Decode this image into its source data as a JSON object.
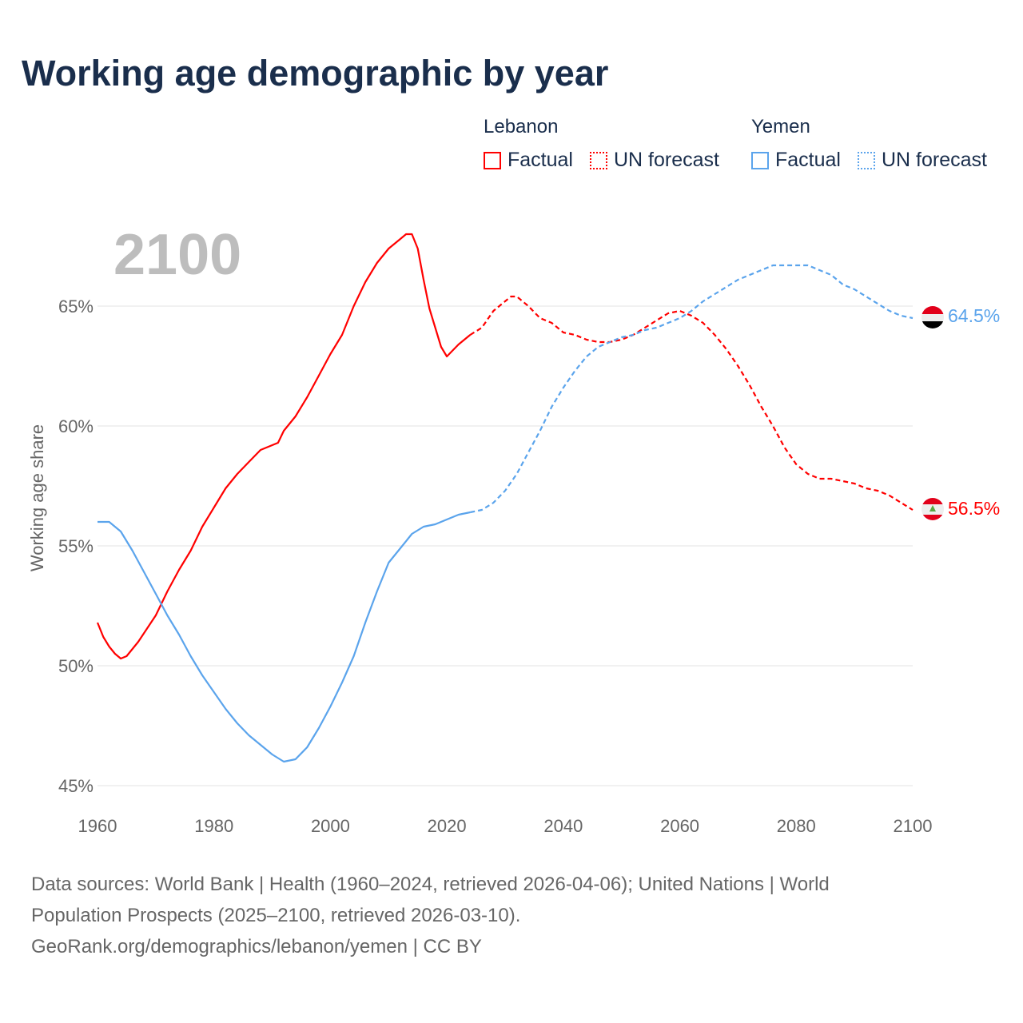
{
  "title": "Working age demographic by year",
  "legend": {
    "groups": [
      {
        "name": "Lebanon",
        "factual_label": "Factual",
        "forecast_label": "UN forecast",
        "color": "#ff0000"
      },
      {
        "name": "Yemen",
        "factual_label": "Factual",
        "forecast_label": "UN forecast",
        "color": "#5ba4ec"
      }
    ]
  },
  "year_watermark": "2100",
  "end_labels": {
    "yemen": "64.5%",
    "lebanon": "56.5%"
  },
  "footer": {
    "line1": "Data sources: World Bank | Health (1960–2024, retrieved 2026-04-06); United Nations | World",
    "line2": "Population Prospects (2025–2100, retrieved 2026-03-10).",
    "line3": "GeoRank.org/demographics/lebanon/yemen | CC BY"
  },
  "chart_data": {
    "type": "line",
    "title": "Working age demographic by year",
    "xlabel": "",
    "ylabel": "Working age share",
    "xlim": [
      1960,
      2100
    ],
    "ylim": [
      45,
      68.5
    ],
    "xticks": [
      "1960",
      "1980",
      "2000",
      "2020",
      "2040",
      "2060",
      "2080",
      "2100"
    ],
    "yticks": [
      "45%",
      "50%",
      "55%",
      "60%",
      "65%"
    ],
    "ytick_values": [
      45,
      50,
      55,
      60,
      65
    ],
    "grid": true,
    "forecast_start": 2024,
    "series": [
      {
        "name": "Lebanon",
        "color": "#ff0000",
        "x": [
          1960,
          1961,
          1962,
          1963,
          1964,
          1965,
          1967,
          1970,
          1972,
          1974,
          1976,
          1978,
          1980,
          1982,
          1984,
          1986,
          1988,
          1990,
          1991,
          1992,
          1994,
          1996,
          1998,
          2000,
          2002,
          2004,
          2006,
          2008,
          2010,
          2012,
          2013,
          2014,
          2015,
          2016,
          2017,
          2018,
          2019,
          2020,
          2022,
          2024,
          2026,
          2028,
          2030,
          2031,
          2032,
          2034,
          2036,
          2038,
          2040,
          2042,
          2044,
          2046,
          2048,
          2050,
          2052,
          2054,
          2056,
          2058,
          2060,
          2062,
          2064,
          2066,
          2068,
          2070,
          2072,
          2074,
          2076,
          2078,
          2080,
          2082,
          2084,
          2086,
          2088,
          2090,
          2092,
          2094,
          2096,
          2098,
          2100
        ],
        "y": [
          51.8,
          51.2,
          50.8,
          50.5,
          50.3,
          50.4,
          51.0,
          52.1,
          53.1,
          54.0,
          54.8,
          55.8,
          56.6,
          57.4,
          58.0,
          58.5,
          59.0,
          59.2,
          59.3,
          59.8,
          60.4,
          61.2,
          62.1,
          63.0,
          63.8,
          65.0,
          66.0,
          66.8,
          67.4,
          67.8,
          68.0,
          68.0,
          67.4,
          66.1,
          64.9,
          64.1,
          63.3,
          62.9,
          63.4,
          63.8,
          64.1,
          64.8,
          65.2,
          65.4,
          65.4,
          65.0,
          64.5,
          64.3,
          63.9,
          63.8,
          63.6,
          63.5,
          63.5,
          63.6,
          63.8,
          64.1,
          64.4,
          64.7,
          64.8,
          64.6,
          64.3,
          63.8,
          63.2,
          62.5,
          61.7,
          60.8,
          60.0,
          59.1,
          58.4,
          58.0,
          57.8,
          57.8,
          57.7,
          57.6,
          57.4,
          57.3,
          57.1,
          56.8,
          56.5
        ]
      },
      {
        "name": "Yemen",
        "color": "#5ba4ec",
        "x": [
          1960,
          1962,
          1964,
          1966,
          1968,
          1970,
          1972,
          1974,
          1976,
          1978,
          1980,
          1982,
          1984,
          1986,
          1988,
          1990,
          1992,
          1994,
          1996,
          1998,
          2000,
          2002,
          2004,
          2006,
          2008,
          2010,
          2012,
          2014,
          2016,
          2018,
          2020,
          2022,
          2024,
          2026,
          2028,
          2030,
          2032,
          2034,
          2036,
          2038,
          2040,
          2042,
          2044,
          2046,
          2048,
          2050,
          2052,
          2054,
          2056,
          2058,
          2060,
          2062,
          2064,
          2066,
          2068,
          2070,
          2072,
          2074,
          2076,
          2078,
          2080,
          2082,
          2084,
          2086,
          2088,
          2090,
          2092,
          2094,
          2096,
          2098,
          2100
        ],
        "y": [
          56.0,
          56.0,
          55.6,
          54.8,
          53.9,
          53.0,
          52.1,
          51.3,
          50.4,
          49.6,
          48.9,
          48.2,
          47.6,
          47.1,
          46.7,
          46.3,
          46.0,
          46.1,
          46.6,
          47.4,
          48.3,
          49.3,
          50.4,
          51.8,
          53.1,
          54.3,
          54.9,
          55.5,
          55.8,
          55.9,
          56.1,
          56.3,
          56.4,
          56.5,
          56.8,
          57.3,
          58.0,
          58.9,
          59.8,
          60.8,
          61.6,
          62.3,
          62.9,
          63.3,
          63.5,
          63.7,
          63.8,
          64.0,
          64.1,
          64.3,
          64.5,
          64.8,
          65.2,
          65.5,
          65.8,
          66.1,
          66.3,
          66.5,
          66.7,
          66.7,
          66.7,
          66.7,
          66.5,
          66.3,
          65.9,
          65.7,
          65.4,
          65.1,
          64.8,
          64.6,
          64.5
        ]
      }
    ]
  }
}
